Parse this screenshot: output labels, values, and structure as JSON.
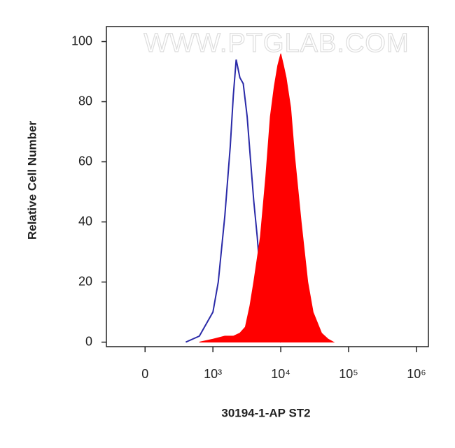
{
  "chart_data": {
    "type": "histogram-overlay",
    "watermark": "WWW.PTGLAB.COM",
    "xlabel": "30194-1-AP ST2",
    "ylabel": "Relative Cell Number",
    "xscale": "biexponential",
    "xlim": [
      -570,
      1500000
    ],
    "ylim": [
      -1.5,
      105
    ],
    "xticks": [
      0,
      {
        "value": 1000,
        "label": "10³"
      },
      {
        "value": 10000,
        "label": "10⁴"
      },
      {
        "value": 100000,
        "label": "10⁵"
      },
      {
        "value": 1000000,
        "label": "10⁶"
      }
    ],
    "yticks": [
      0,
      20,
      40,
      60,
      80,
      100
    ],
    "series": [
      {
        "color": "#2a2aa8",
        "fill": false,
        "x": [
          600,
          800,
          1000,
          1200,
          1500,
          1800,
          2000,
          2200,
          2500,
          2800,
          3200,
          3600,
          4000,
          4500,
          5000,
          6000,
          7000,
          8000,
          10000
        ],
        "values": [
          0,
          2,
          10,
          20,
          42,
          65,
          82,
          94,
          88,
          86,
          75,
          60,
          47,
          35,
          22,
          9,
          3,
          1,
          0
        ]
      },
      {
        "color": "#ff0000",
        "fill": true,
        "x": [
          800,
          1000,
          1500,
          2000,
          2500,
          3000,
          3500,
          4000,
          5000,
          6000,
          7000,
          8000,
          9000,
          10000,
          11000,
          12000,
          14000,
          16000,
          20000,
          25000,
          30000,
          40000,
          50000,
          60000
        ],
        "values": [
          0,
          1,
          2,
          2,
          3,
          5,
          12,
          20,
          35,
          55,
          75,
          85,
          92,
          96,
          92,
          88,
          78,
          62,
          40,
          20,
          10,
          3,
          1,
          0
        ]
      }
    ]
  }
}
